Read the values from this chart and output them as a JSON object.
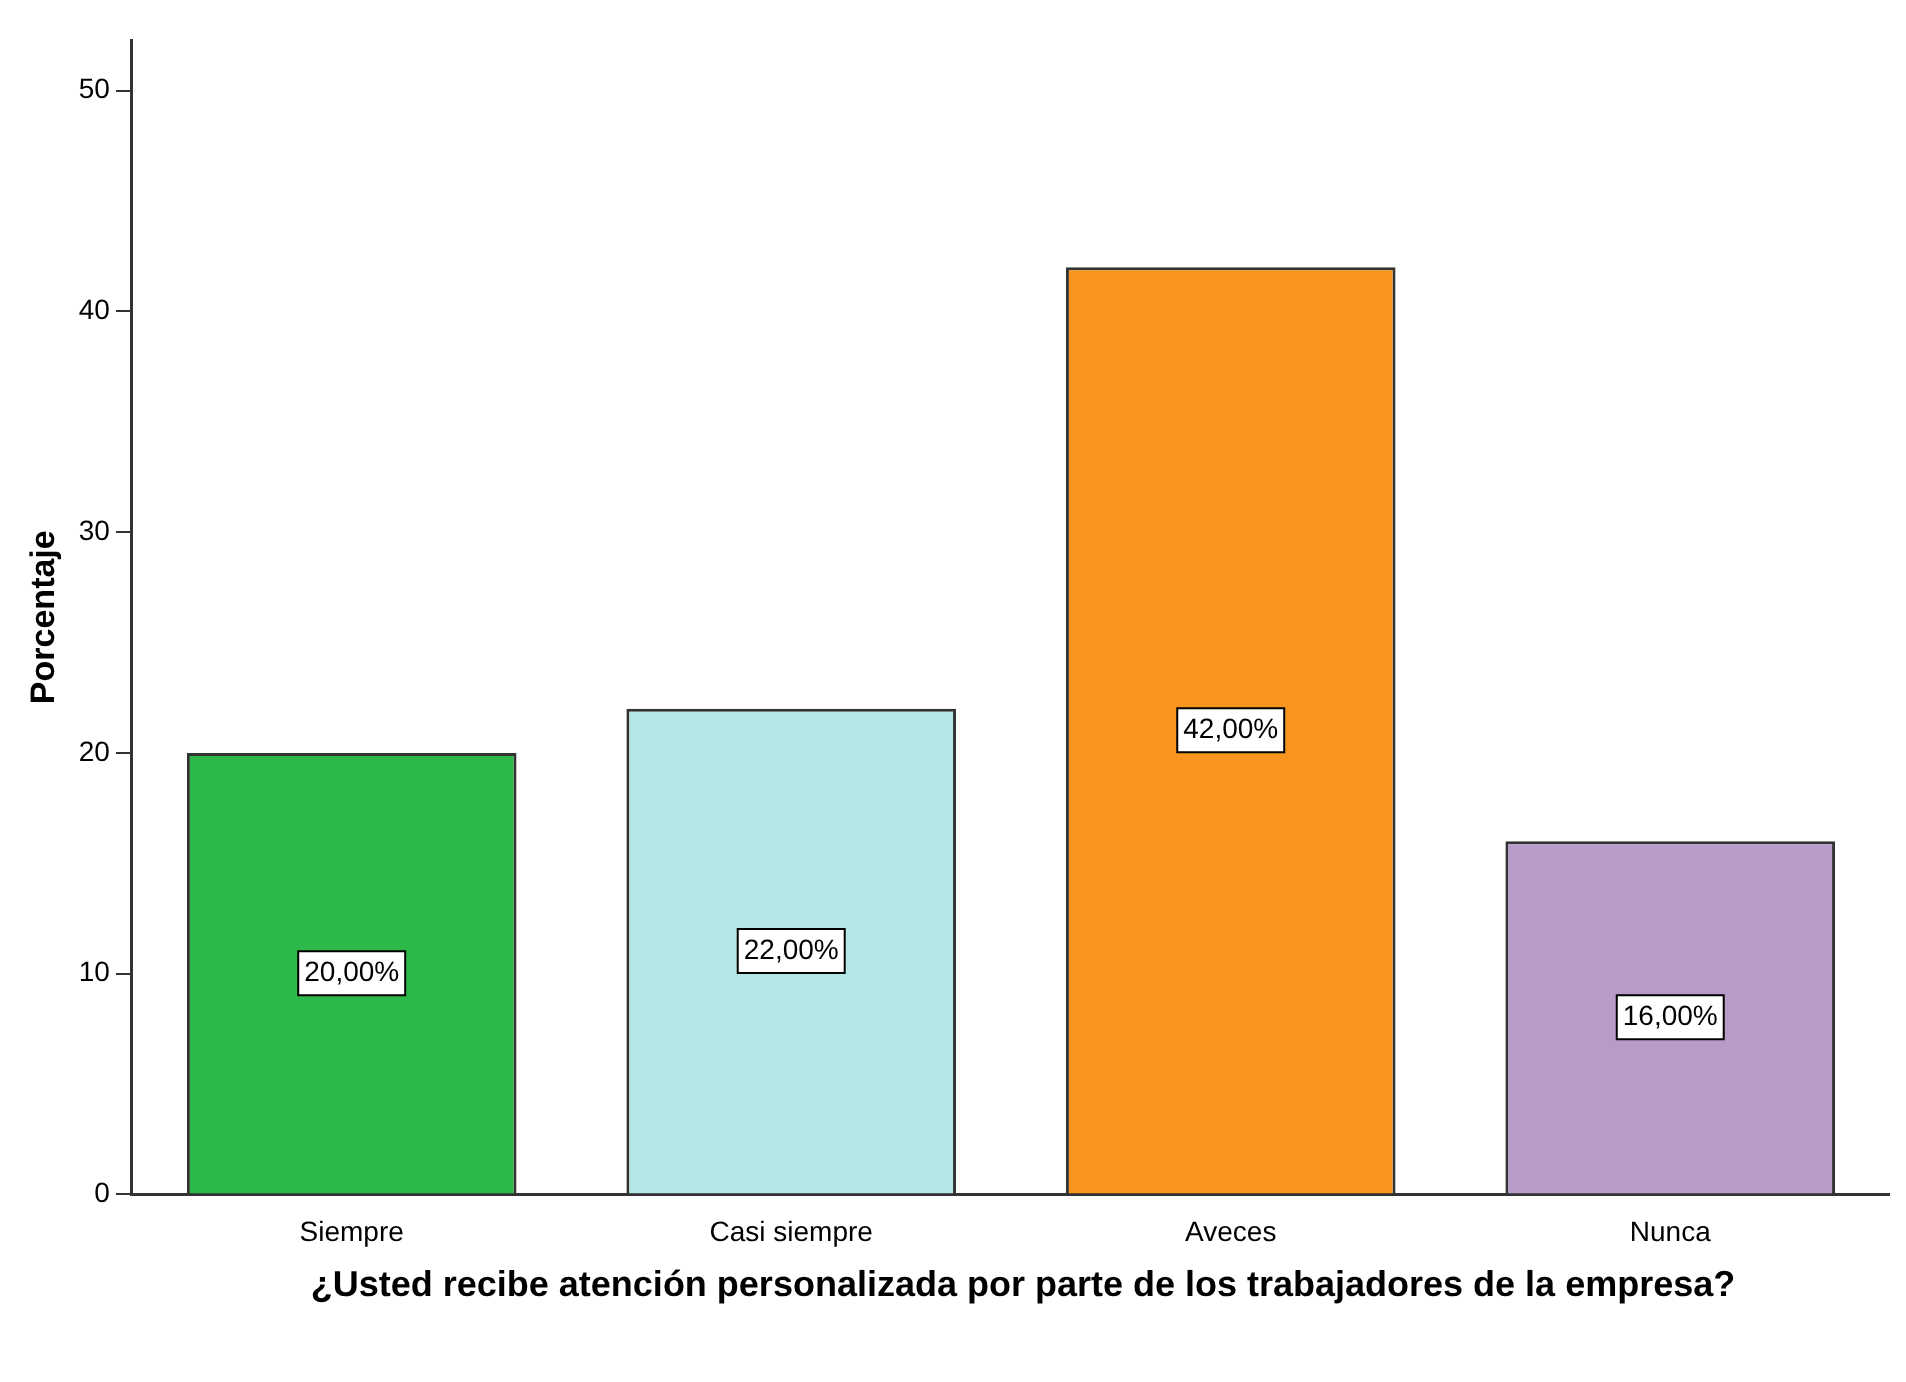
{
  "chart_data": {
    "type": "bar",
    "xlabel": "¿Usted recibe atención personalizada por parte de los trabajadores de la empresa?",
    "ylabel": "Porcentaje",
    "categories": [
      "Siempre",
      "Casi siempre",
      "Aveces",
      "Nunca"
    ],
    "values": [
      20,
      22,
      42,
      16
    ],
    "colors": [
      "#2db84a",
      "#b4e6e6",
      "#f7951f",
      "#b79bc9"
    ],
    "value_labels": [
      "20,00%",
      "22,00%",
      "42,00%",
      "16,00%"
    ],
    "ylim": [
      0,
      52.3
    ],
    "yticks": [
      0,
      10,
      20,
      30,
      40,
      50
    ],
    "grid": false,
    "legend": false
  }
}
